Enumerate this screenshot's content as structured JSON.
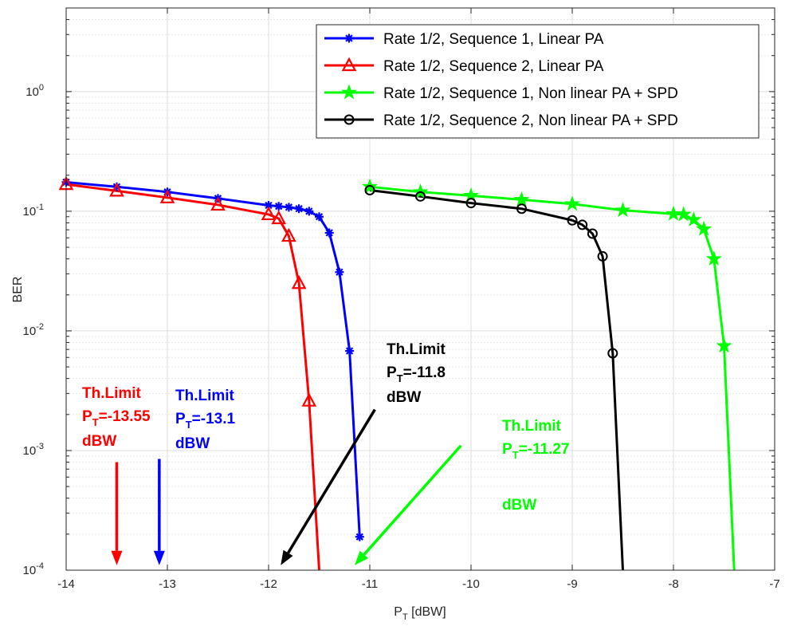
{
  "chart_data": {
    "type": "line",
    "xlabel_main": "P",
    "xlabel_sub": "T",
    "xlabel_unit": " [dBW]",
    "ylabel": "BER",
    "xlim": [
      -14,
      -7
    ],
    "ylim": [
      0.0001,
      5
    ],
    "yscale": "log",
    "grid": true,
    "x_ticks": [
      -14,
      -13,
      -12,
      -11,
      -10,
      -9,
      -8,
      -7
    ],
    "y_ticks": [
      {
        "value": 0.0001,
        "base": "10",
        "exp": "-4"
      },
      {
        "value": 0.001,
        "base": "10",
        "exp": "-3"
      },
      {
        "value": 0.01,
        "base": "10",
        "exp": "-2"
      },
      {
        "value": 0.1,
        "base": "10",
        "exp": "-1"
      },
      {
        "value": 1,
        "base": "10",
        "exp": "0"
      }
    ],
    "legend_position": "top-right",
    "series": [
      {
        "name": "Rate 1/2, Sequence 1, Linear PA",
        "color": "#0000ff",
        "marker": "asterisk",
        "x": [
          -14,
          -13.5,
          -13,
          -12.5,
          -12,
          -11.9,
          -11.8,
          -11.7,
          -11.6,
          -11.5,
          -11.4,
          -11.3,
          -11.2,
          -11.1
        ],
        "y": [
          0.175,
          0.16,
          0.145,
          0.128,
          0.112,
          0.11,
          0.108,
          0.105,
          0.1,
          0.09,
          0.066,
          0.031,
          0.0068,
          0.00019
        ]
      },
      {
        "name": "Rate 1/2, Sequence 2, Linear PA",
        "color": "#ff0000",
        "marker": "triangle",
        "x": [
          -14,
          -13.5,
          -13,
          -12.5,
          -12,
          -11.9,
          -11.8,
          -11.7,
          -11.6,
          -11.5
        ],
        "y": [
          0.168,
          0.148,
          0.13,
          0.113,
          0.094,
          0.087,
          0.062,
          0.025,
          0.0026,
          0.0001
        ]
      },
      {
        "name": "Rate 1/2, Sequence 1, Non linear PA + SPD",
        "color": "#00ff00",
        "marker": "star",
        "x": [
          -11,
          -10.5,
          -10,
          -9.5,
          -9,
          -8.5,
          -8,
          -7.9,
          -7.8,
          -7.7,
          -7.6,
          -7.5,
          -7.4
        ],
        "y": [
          0.16,
          0.145,
          0.135,
          0.125,
          0.115,
          0.102,
          0.095,
          0.094,
          0.085,
          0.071,
          0.04,
          0.0075,
          0.0001
        ]
      },
      {
        "name": "Rate 1/2, Sequence 2, Non linear PA + SPD",
        "color": "#000000",
        "marker": "circle",
        "x": [
          -11,
          -10.5,
          -10,
          -9.5,
          -9,
          -8.9,
          -8.8,
          -8.7,
          -8.6,
          -8.5
        ],
        "y": [
          0.15,
          0.133,
          0.117,
          0.105,
          0.084,
          0.077,
          0.065,
          0.042,
          0.0065,
          0.0001
        ]
      }
    ],
    "annotations": [
      {
        "id": "red",
        "color": "#ff0000",
        "line1": "Th.Limit",
        "line2_main": "P",
        "line2_sub": "T",
        "line2_val": "=-13.55",
        "line3": "dBW",
        "arrow_from": [
          -13.5,
          0.0008
        ],
        "arrow_to": [
          -13.5,
          0.00011
        ]
      },
      {
        "id": "blue",
        "color": "#0000ff",
        "line1": "Th.Limit",
        "line2_main": "P",
        "line2_sub": "T",
        "line2_val": "=-13.1",
        "line3": "dBW",
        "arrow_from": [
          -13.08,
          0.00085
        ],
        "arrow_to": [
          -13.08,
          0.00011
        ]
      },
      {
        "id": "black",
        "color": "#000000",
        "line1": "Th.Limit",
        "line2_main": "P",
        "line2_sub": "T",
        "line2_val": "=-11.8",
        "line3": "dBW",
        "arrow_from": [
          -10.95,
          0.0022
        ],
        "arrow_to": [
          -11.88,
          0.00011
        ]
      },
      {
        "id": "green",
        "color": "#00ff00",
        "line1": "Th.Limit",
        "line2_main": "P",
        "line2_sub": "T",
        "line2_val": "=-11.27",
        "line3": "dBW",
        "arrow_from": [
          -10.1,
          0.0011
        ],
        "arrow_to": [
          -11.15,
          0.00011
        ]
      }
    ]
  }
}
